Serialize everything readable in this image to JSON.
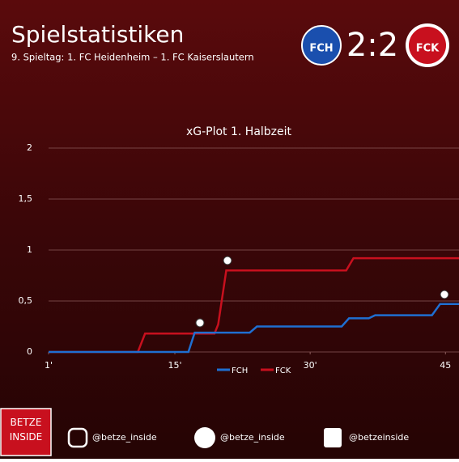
{
  "header": {
    "title": "Spielstatistiken",
    "subtitle": "9. Spieltag: 1. FC Heidenheim – 1. FC Kaiserslautern",
    "home_logo": "FCH",
    "score": "2:2",
    "away_logo": "FCK"
  },
  "chart_data": {
    "type": "line",
    "title": "xG-Plot 1. Halbzeit",
    "step": true,
    "xlim": [
      1,
      46.5
    ],
    "xticks": [
      {
        "value": 1,
        "label": "1'"
      },
      {
        "value": 15,
        "label": "15'"
      },
      {
        "value": 30,
        "label": "30'"
      },
      45
    ],
    "ylim": [
      0,
      2
    ],
    "yticks": [
      0,
      {
        "value": 0.5,
        "label": "0,5"
      },
      1,
      {
        "value": 1.5,
        "label": "1,5"
      },
      2
    ],
    "grid": true,
    "legend": "bottom",
    "series": [
      {
        "name": "FCH",
        "color": "#1f6fd1",
        "x": [
          1,
          16.5,
          17.2,
          23.3,
          24.1,
          33.5,
          34.3,
          36.5,
          37.2,
          43.5,
          44.4,
          46.5
        ],
        "values": [
          0,
          0,
          0.19,
          0.19,
          0.25,
          0.25,
          0.33,
          0.33,
          0.36,
          0.36,
          0.47,
          0.47
        ]
      },
      {
        "name": "FCK",
        "color": "#c8101e",
        "x": [
          1,
          10.9,
          11.7,
          19.4,
          19.8,
          20.7,
          34,
          34.8,
          46.5
        ],
        "values": [
          0,
          0,
          0.18,
          0.18,
          0.27,
          0.8,
          0.8,
          0.92,
          0.92
        ]
      }
    ]
  },
  "footer": {
    "brand": "BETZE INSIDE",
    "instagram": "@betze_inside",
    "twitter": "@betze_inside",
    "facebook": "@betzeinside"
  }
}
